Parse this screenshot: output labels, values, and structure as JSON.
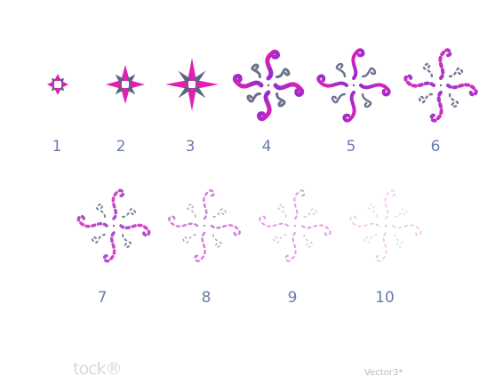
{
  "frames": [
    {
      "label": "1"
    },
    {
      "label": "2"
    },
    {
      "label": "3"
    },
    {
      "label": "4"
    },
    {
      "label": "5"
    },
    {
      "label": "6"
    },
    {
      "label": "7"
    },
    {
      "label": "8"
    },
    {
      "label": "9"
    },
    {
      "label": "10"
    }
  ],
  "watermark": {
    "left": "tock®",
    "right": "Vector3*"
  },
  "colors": {
    "magenta": "#e21fb5",
    "purple": "#6a36d8",
    "slate": "#5b6480",
    "label": "#6b7bae"
  }
}
